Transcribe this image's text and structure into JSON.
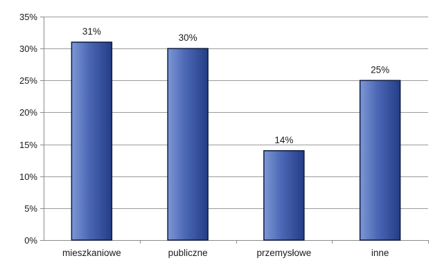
{
  "chart_data": {
    "type": "bar",
    "title": "",
    "xlabel": "",
    "ylabel": "",
    "categories": [
      "mieszkaniowe",
      "publiczne",
      "przemysłowe",
      "inne"
    ],
    "values": [
      31,
      30,
      14,
      25
    ],
    "data_labels": [
      "31%",
      "30%",
      "14%",
      "25%"
    ],
    "ylim": [
      0,
      35
    ],
    "y_ticks": [
      0,
      5,
      10,
      15,
      20,
      25,
      30,
      35
    ],
    "y_tick_labels": [
      "0%",
      "5%",
      "10%",
      "15%",
      "20%",
      "25%",
      "30%",
      "35%"
    ],
    "grid": true,
    "legend": "none",
    "colors": {
      "bar_light": "#7d97d4",
      "bar_mid": "#4a66b4",
      "bar_dark": "#243d86",
      "bar_edge": "#0d1a3d",
      "grid": "#9a9a9a",
      "axis": "#8a8a8a"
    }
  }
}
